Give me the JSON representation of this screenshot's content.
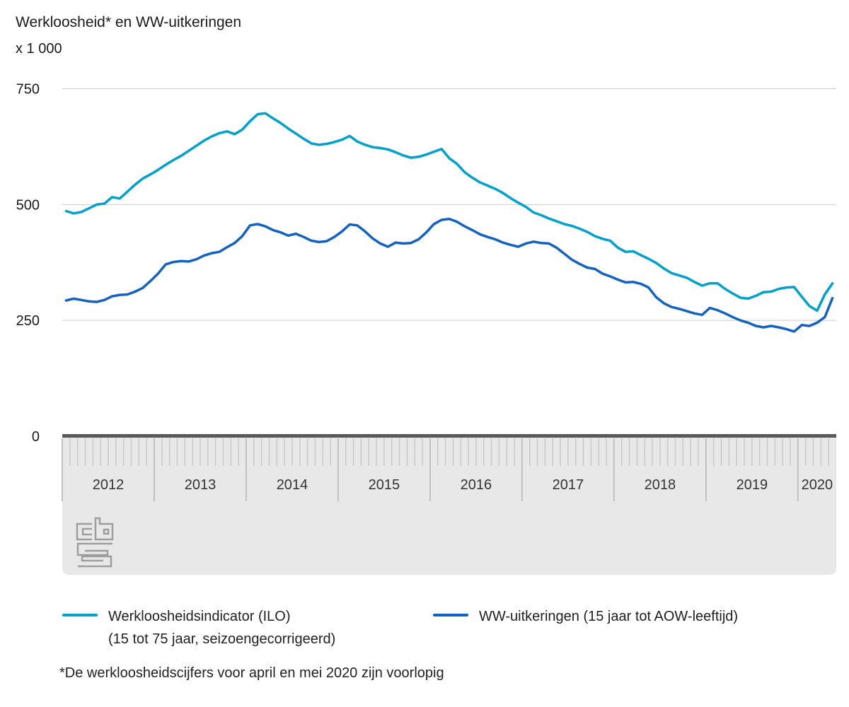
{
  "title": "Werkloosheid* en WW-uitkeringen",
  "unit_label": "x 1 000",
  "footnote": "*De werkloosheidscijfers voor april en mei 2020 zijn voorlopig",
  "logo_text": "cbs",
  "legend": {
    "item1_line1": "Werkloosheidsindicator (ILO)",
    "item1_line2": "(15 tot 75 jaar, seizoengecorrigeerd)",
    "item2": "WW-uitkeringen (15 jaar tot AOW-leeftijd)"
  },
  "colors": {
    "series1": "#00a1cd",
    "series2": "#1261c4",
    "gridline": "#cccccc",
    "zero_axis": "#595959",
    "band": "#e8e8e8",
    "tick_short": "#c9c9c9",
    "tick_long": "#b5b5b5",
    "axis_text": "#333333",
    "y_label_text": "#1a1a1a",
    "logo": "#9d9d9d"
  },
  "chart_data": {
    "type": "line",
    "title": "Werkloosheid* en WW-uitkeringen",
    "unit": "x 1 000",
    "frequency": "monthly",
    "x_start": "2012-01",
    "x_end": "2020-05",
    "year_labels": [
      "2012",
      "2013",
      "2014",
      "2015",
      "2016",
      "2017",
      "2018",
      "2019",
      "2020"
    ],
    "y_ticks": [
      750,
      500,
      250,
      0
    ],
    "ylim": [
      0,
      750
    ],
    "grid": "horizontal",
    "legend_position": "bottom",
    "series": [
      {
        "name": "Werkloosheidsindicator (ILO) (15 tot 75 jaar, seizoengecorrigeerd)",
        "color": "#00a1cd",
        "values": [
          486,
          481,
          484,
          492,
          500,
          502,
          516,
          513,
          528,
          543,
          556,
          565,
          575,
          586,
          596,
          605,
          616,
          627,
          638,
          647,
          654,
          658,
          652,
          662,
          680,
          695,
          697,
          686,
          676,
          664,
          653,
          642,
          632,
          629,
          631,
          635,
          640,
          648,
          636,
          629,
          624,
          622,
          619,
          613,
          606,
          601,
          603,
          608,
          614,
          620,
          600,
          588,
          570,
          558,
          548,
          541,
          534,
          525,
          514,
          504,
          495,
          483,
          477,
          470,
          464,
          458,
          454,
          448,
          441,
          432,
          426,
          422,
          407,
          398,
          399,
          391,
          383,
          374,
          362,
          352,
          347,
          342,
          333,
          325,
          330,
          330,
          318,
          308,
          299,
          297,
          303,
          311,
          312,
          318,
          321,
          322,
          301,
          281,
          271,
          306,
          330
        ]
      },
      {
        "name": "WW-uitkeringen (15 jaar tot AOW-leeftijd)",
        "color": "#1261c4",
        "values": [
          293,
          297,
          294,
          291,
          290,
          294,
          302,
          305,
          306,
          312,
          320,
          335,
          351,
          371,
          376,
          378,
          377,
          382,
          390,
          395,
          398,
          408,
          417,
          432,
          455,
          458,
          453,
          445,
          440,
          433,
          437,
          430,
          422,
          419,
          421,
          430,
          442,
          457,
          455,
          442,
          427,
          416,
          409,
          418,
          416,
          417,
          425,
          440,
          458,
          467,
          469,
          463,
          453,
          445,
          436,
          430,
          425,
          418,
          413,
          409,
          416,
          420,
          417,
          416,
          407,
          394,
          381,
          372,
          364,
          361,
          351,
          345,
          338,
          332,
          333,
          329,
          321,
          300,
          287,
          279,
          275,
          270,
          265,
          262,
          277,
          272,
          265,
          257,
          250,
          245,
          238,
          235,
          238,
          235,
          231,
          226,
          240,
          238,
          245,
          257,
          298
        ]
      }
    ]
  }
}
